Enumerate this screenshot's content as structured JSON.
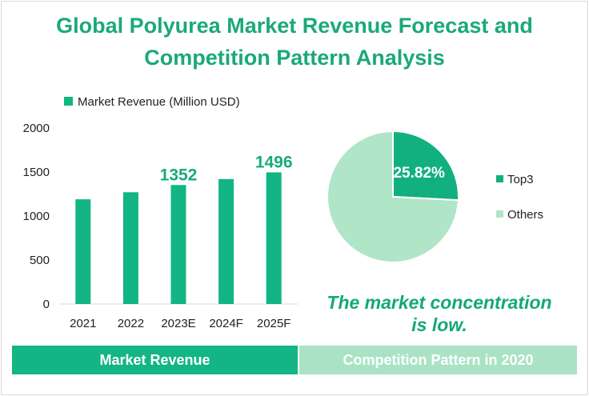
{
  "title_line1": "Global Polyurea Market Revenue Forecast and",
  "title_line2": "Competition Pattern Analysis",
  "conclusion_line1": "The market concentration",
  "conclusion_line2": "is low.",
  "footer": {
    "left_label": "Market Revenue",
    "right_label": "Competition Pattern in 2020"
  },
  "colors": {
    "title": "#1aa97a",
    "bar": "#12b583",
    "pie_top3": "#13b07f",
    "pie_others": "#b0e5c7",
    "band_left": "#12b583",
    "band_right": "#a9e3c4"
  },
  "chart_data": [
    {
      "type": "bar",
      "categories": [
        "2021",
        "2022",
        "2023E",
        "2024F",
        "2025F"
      ],
      "series": [
        {
          "name": "Market Revenue (Million USD)",
          "values": [
            1190,
            1270,
            1352,
            1420,
            1496
          ]
        }
      ],
      "data_labels": [
        "",
        "",
        "1352",
        "",
        "1496"
      ],
      "yticks": [
        "0",
        "500",
        "1000",
        "1500",
        "2000"
      ],
      "ylim": [
        0,
        2000
      ],
      "grid": false,
      "legend": "top"
    },
    {
      "type": "pie",
      "slices": [
        {
          "name": "Top3",
          "value": 25.82,
          "label": "25.82%"
        },
        {
          "name": "Others",
          "value": 74.18,
          "label": ""
        }
      ],
      "legend": "right"
    }
  ]
}
